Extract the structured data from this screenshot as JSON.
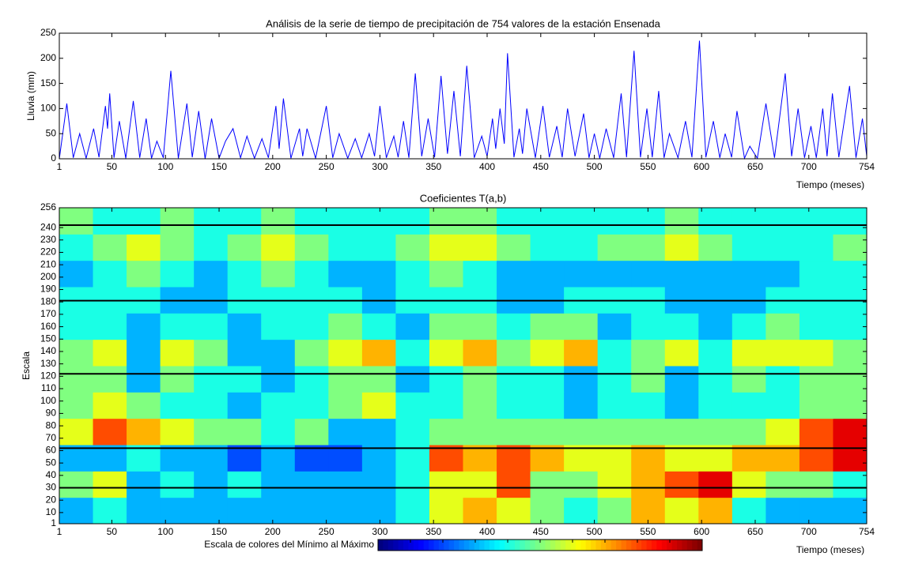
{
  "chart_data": [
    {
      "type": "line",
      "title": "Análisis de la serie de tiempo de precipitación de 754 valores de la estación Ensenada",
      "xlabel": "Tiempo (meses)",
      "ylabel": "Lluvia (mm)",
      "xlim": [
        1,
        754
      ],
      "ylim": [
        0,
        250
      ],
      "xticks": [
        1,
        50,
        100,
        150,
        200,
        250,
        300,
        350,
        400,
        450,
        500,
        550,
        600,
        650,
        700,
        754
      ],
      "yticks": [
        0,
        50,
        100,
        150,
        200,
        250
      ],
      "color": "#0000ff",
      "x": [
        1,
        8,
        14,
        20,
        26,
        33,
        38,
        44,
        46,
        48,
        52,
        57,
        63,
        70,
        76,
        82,
        87,
        92,
        98,
        105,
        112,
        120,
        125,
        131,
        137,
        143,
        150,
        156,
        163,
        170,
        176,
        183,
        190,
        196,
        203,
        206,
        210,
        217,
        225,
        228,
        232,
        240,
        250,
        256,
        262,
        270,
        277,
        283,
        290,
        295,
        300,
        306,
        313,
        317,
        322,
        327,
        333,
        339,
        345,
        351,
        357,
        363,
        369,
        375,
        381,
        388,
        395,
        400,
        405,
        408,
        412,
        416,
        419,
        425,
        430,
        433,
        437,
        445,
        452,
        458,
        465,
        470,
        475,
        482,
        490,
        495,
        500,
        505,
        511,
        518,
        525,
        530,
        537,
        543,
        549,
        554,
        560,
        565,
        570,
        578,
        585,
        591,
        598,
        604,
        611,
        617,
        622,
        628,
        633,
        640,
        645,
        652,
        660,
        668,
        678,
        684,
        690,
        696,
        702,
        707,
        713,
        717,
        722,
        728,
        738,
        744,
        750,
        754
      ],
      "values": [
        0,
        110,
        2,
        50,
        1,
        60,
        3,
        105,
        60,
        130,
        2,
        75,
        1,
        115,
        2,
        80,
        1,
        35,
        2,
        175,
        1,
        110,
        3,
        95,
        0,
        80,
        1,
        35,
        60,
        2,
        45,
        1,
        40,
        2,
        105,
        20,
        120,
        1,
        60,
        5,
        60,
        1,
        105,
        2,
        50,
        1,
        40,
        2,
        50,
        5,
        105,
        2,
        45,
        3,
        75,
        2,
        170,
        5,
        80,
        3,
        165,
        10,
        135,
        5,
        185,
        2,
        45,
        5,
        80,
        20,
        100,
        30,
        210,
        3,
        60,
        10,
        100,
        2,
        105,
        3,
        65,
        3,
        100,
        5,
        90,
        2,
        50,
        1,
        60,
        2,
        130,
        3,
        215,
        3,
        100,
        3,
        135,
        2,
        50,
        2,
        75,
        3,
        235,
        3,
        75,
        2,
        50,
        3,
        95,
        1,
        25,
        1,
        110,
        2,
        170,
        5,
        100,
        2,
        65,
        2,
        100,
        5,
        130,
        3,
        145,
        2,
        80,
        5
      ]
    },
    {
      "type": "heatmap",
      "title": "Coeficientes T(a,b)",
      "xlabel": "Tiempo (meses)",
      "ylabel": "Escala",
      "colorbar_label": "Escala de colores del Mínimo al Máximo",
      "xlim": [
        1,
        754
      ],
      "ylim": [
        1,
        256
      ],
      "xticks": [
        1,
        50,
        100,
        150,
        200,
        250,
        300,
        350,
        400,
        450,
        500,
        550,
        600,
        650,
        700,
        754
      ],
      "yticks": [
        1,
        10,
        20,
        30,
        40,
        50,
        60,
        70,
        80,
        90,
        100,
        110,
        120,
        130,
        140,
        150,
        160,
        170,
        180,
        190,
        200,
        210,
        220,
        230,
        240,
        256
      ],
      "hlines": [
        30,
        62,
        122,
        181,
        242
      ],
      "hline_color": "#000000",
      "z": [
        [
          0.3,
          0.4,
          0.3,
          0.3,
          0.3,
          0.3,
          0.3,
          0.3,
          0.3,
          0.3,
          0.4,
          0.6,
          0.7,
          0.6,
          0.5,
          0.4,
          0.5,
          0.7,
          0.6,
          0.7,
          0.4,
          0.3,
          0.3,
          0.3
        ],
        [
          0.5,
          0.6,
          0.3,
          0.4,
          0.3,
          0.4,
          0.3,
          0.3,
          0.3,
          0.3,
          0.4,
          0.6,
          0.6,
          0.8,
          0.5,
          0.5,
          0.6,
          0.7,
          0.8,
          0.9,
          0.6,
          0.5,
          0.5,
          0.4
        ],
        [
          0.3,
          0.3,
          0.4,
          0.3,
          0.3,
          0.2,
          0.3,
          0.2,
          0.2,
          0.3,
          0.4,
          0.8,
          0.7,
          0.8,
          0.7,
          0.6,
          0.6,
          0.7,
          0.6,
          0.6,
          0.7,
          0.7,
          0.8,
          0.9
        ],
        [
          0.6,
          0.8,
          0.7,
          0.6,
          0.5,
          0.5,
          0.4,
          0.5,
          0.3,
          0.3,
          0.4,
          0.5,
          0.5,
          0.5,
          0.5,
          0.5,
          0.5,
          0.5,
          0.5,
          0.5,
          0.5,
          0.6,
          0.8,
          0.9
        ],
        [
          0.5,
          0.6,
          0.5,
          0.4,
          0.4,
          0.3,
          0.4,
          0.4,
          0.5,
          0.6,
          0.4,
          0.4,
          0.5,
          0.4,
          0.4,
          0.3,
          0.4,
          0.4,
          0.3,
          0.4,
          0.4,
          0.4,
          0.5,
          0.5
        ],
        [
          0.5,
          0.5,
          0.3,
          0.5,
          0.4,
          0.4,
          0.3,
          0.4,
          0.5,
          0.5,
          0.3,
          0.4,
          0.5,
          0.4,
          0.4,
          0.3,
          0.4,
          0.5,
          0.3,
          0.4,
          0.5,
          0.4,
          0.5,
          0.5
        ],
        [
          0.5,
          0.6,
          0.3,
          0.6,
          0.5,
          0.3,
          0.3,
          0.5,
          0.6,
          0.7,
          0.4,
          0.6,
          0.7,
          0.5,
          0.6,
          0.7,
          0.4,
          0.5,
          0.6,
          0.4,
          0.6,
          0.6,
          0.6,
          0.5
        ],
        [
          0.4,
          0.4,
          0.3,
          0.4,
          0.4,
          0.3,
          0.4,
          0.4,
          0.5,
          0.4,
          0.3,
          0.5,
          0.5,
          0.4,
          0.5,
          0.5,
          0.3,
          0.4,
          0.4,
          0.3,
          0.4,
          0.5,
          0.4,
          0.4
        ],
        [
          0.4,
          0.4,
          0.4,
          0.3,
          0.3,
          0.4,
          0.4,
          0.4,
          0.4,
          0.3,
          0.4,
          0.4,
          0.4,
          0.3,
          0.3,
          0.4,
          0.4,
          0.4,
          0.3,
          0.3,
          0.3,
          0.4,
          0.4,
          0.4
        ],
        [
          0.3,
          0.4,
          0.5,
          0.4,
          0.3,
          0.4,
          0.5,
          0.4,
          0.3,
          0.3,
          0.4,
          0.5,
          0.4,
          0.3,
          0.3,
          0.3,
          0.3,
          0.3,
          0.3,
          0.3,
          0.3,
          0.3,
          0.4,
          0.4
        ],
        [
          0.4,
          0.5,
          0.6,
          0.5,
          0.4,
          0.5,
          0.6,
          0.5,
          0.4,
          0.4,
          0.5,
          0.6,
          0.6,
          0.5,
          0.4,
          0.4,
          0.5,
          0.5,
          0.6,
          0.5,
          0.4,
          0.4,
          0.4,
          0.5
        ],
        [
          0.5,
          0.4,
          0.4,
          0.5,
          0.4,
          0.4,
          0.5,
          0.4,
          0.4,
          0.4,
          0.4,
          0.5,
          0.5,
          0.4,
          0.4,
          0.4,
          0.4,
          0.4,
          0.5,
          0.4,
          0.4,
          0.4,
          0.4,
          0.4
        ]
      ]
    }
  ]
}
